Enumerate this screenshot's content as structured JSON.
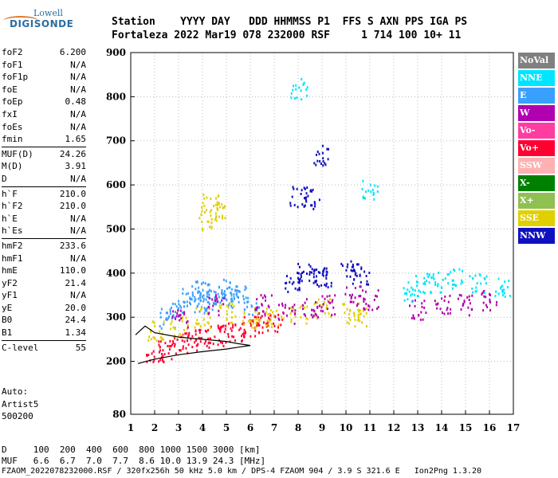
{
  "logo": {
    "line1": "Lowell",
    "line2": "DIGISONDE"
  },
  "header": {
    "labels": "Station    YYYY DAY   DDD HHMMSS P1  FFS S AXN PPS IGA PS",
    "values": "Fortaleza 2022 Mar19 078 232000 RSF     1 714 100 10+ 11"
  },
  "params": [
    {
      "key": "foF2",
      "value": "6.200"
    },
    {
      "key": "foF1",
      "value": "N/A"
    },
    {
      "key": "foF1p",
      "value": "N/A"
    },
    {
      "key": "foE",
      "value": "N/A"
    },
    {
      "key": "foEp",
      "value": "0.48"
    },
    {
      "key": "fxI",
      "value": "N/A"
    },
    {
      "key": "foEs",
      "value": "N/A"
    },
    {
      "key": "fmin",
      "value": "1.65"
    },
    {
      "key": "MUF(D)",
      "value": "24.26"
    },
    {
      "key": "M(D)",
      "value": "3.91"
    },
    {
      "key": "D",
      "value": "N/A"
    },
    {
      "key": "h`F",
      "value": "210.0"
    },
    {
      "key": "h`F2",
      "value": "210.0"
    },
    {
      "key": "h`E",
      "value": "N/A"
    },
    {
      "key": "h`Es",
      "value": "N/A"
    },
    {
      "key": "hmF2",
      "value": "233.6"
    },
    {
      "key": "hmF1",
      "value": "N/A"
    },
    {
      "key": "hmE",
      "value": "110.0"
    },
    {
      "key": "yF2",
      "value": "21.4"
    },
    {
      "key": "yF1",
      "value": "N/A"
    },
    {
      "key": "yE",
      "value": "20.0"
    },
    {
      "key": "B0",
      "value": "24.4"
    },
    {
      "key": "B1",
      "value": "1.34"
    },
    {
      "key": "C-level",
      "value": "55"
    }
  ],
  "auto": {
    "line1": "Auto:",
    "line2": "Artist5",
    "line3": "500200"
  },
  "footer": {
    "d_row": "D     100  200  400  600  800 1000 1500 3000 [km]",
    "muf_row": "MUF   6.6  6.7  7.0  7.7  8.6 10.0 13.9 24.3 [MHz]",
    "file_row": "FZAOM_2022078232000.RSF / 320fx256h 50 kHz 5.0 km / DPS-4 FZAOM 904 / 3.9 S 321.6 E   Ion2Png 1.3.20"
  },
  "legend": [
    {
      "label": "NoVal",
      "color": "#808080"
    },
    {
      "label": "NNE",
      "color": "#00e5ff"
    },
    {
      "label": "E",
      "color": "#3aa0ff"
    },
    {
      "label": "W",
      "color": "#b000b0"
    },
    {
      "label": "Vo-",
      "color": "#ff3ca0"
    },
    {
      "label": "Vo+",
      "color": "#ff0030"
    },
    {
      "label": "SSW",
      "color": "#ffb0b0"
    },
    {
      "label": "X-",
      "color": "#008000"
    },
    {
      "label": "X+",
      "color": "#90c050"
    },
    {
      "label": "SSE",
      "color": "#e0d000"
    },
    {
      "label": "NNW",
      "color": "#1010c0"
    }
  ],
  "chart_data": {
    "type": "scatter",
    "x": {
      "min": 1,
      "max": 17,
      "ticks": [
        "1",
        "2",
        "3",
        "4",
        "5",
        "6",
        "7",
        "8",
        "9",
        "10",
        "11",
        "12",
        "13",
        "14",
        "15",
        "16",
        "17"
      ]
    },
    "y": {
      "min": 80,
      "max": 900,
      "ticks": [
        "80",
        "200",
        "300",
        "400",
        "500",
        "600",
        "700",
        "800",
        "900"
      ]
    },
    "clusters": [
      {
        "name": "E",
        "points": [
          [
            2.5,
            300
          ],
          [
            3.0,
            320
          ],
          [
            3.5,
            350
          ],
          [
            4.0,
            360
          ],
          [
            4.5,
            355
          ],
          [
            5.0,
            365
          ],
          [
            5.5,
            350
          ],
          [
            6.0,
            330
          ],
          [
            4.2,
            340
          ],
          [
            3.8,
            335
          ],
          [
            5.2,
            345
          ]
        ]
      },
      {
        "name": "Vo+",
        "points": [
          [
            2.0,
            215
          ],
          [
            2.5,
            225
          ],
          [
            3.0,
            240
          ],
          [
            3.5,
            250
          ],
          [
            4.0,
            255
          ],
          [
            4.5,
            260
          ],
          [
            5.0,
            265
          ],
          [
            5.5,
            270
          ],
          [
            6.0,
            280
          ],
          [
            6.5,
            290
          ],
          [
            7.0,
            290
          ]
        ]
      },
      {
        "name": "SSE",
        "points": [
          [
            2.0,
            270
          ],
          [
            3.0,
            280
          ],
          [
            4.0,
            300
          ],
          [
            4.3,
            560
          ],
          [
            4.6,
            540
          ],
          [
            4.2,
            520
          ],
          [
            5.0,
            310
          ],
          [
            6.0,
            300
          ],
          [
            7.0,
            300
          ],
          [
            8.0,
            310
          ],
          [
            9.0,
            320
          ],
          [
            10.2,
            310
          ],
          [
            10.6,
            305
          ]
        ]
      },
      {
        "name": "W",
        "points": [
          [
            3.0,
            300
          ],
          [
            4.5,
            330
          ],
          [
            6.5,
            330
          ],
          [
            7.5,
            310
          ],
          [
            8.5,
            320
          ],
          [
            9.2,
            330
          ],
          [
            10.3,
            350
          ],
          [
            11.0,
            340
          ],
          [
            13.0,
            320
          ],
          [
            14.0,
            330
          ],
          [
            15.0,
            330
          ],
          [
            16.0,
            340
          ]
        ]
      },
      {
        "name": "NNW",
        "points": [
          [
            7.8,
            380
          ],
          [
            8.3,
            400
          ],
          [
            8.8,
            390
          ],
          [
            9.0,
            390
          ],
          [
            10.1,
            410
          ],
          [
            10.6,
            400
          ],
          [
            8.0,
            575
          ],
          [
            8.5,
            570
          ],
          [
            9.0,
            670
          ]
        ]
      },
      {
        "name": "NNE",
        "points": [
          [
            8.0,
            820
          ],
          [
            12.7,
            360
          ],
          [
            13.2,
            380
          ],
          [
            13.8,
            380
          ],
          [
            14.5,
            390
          ],
          [
            15.5,
            380
          ],
          [
            16.5,
            370
          ],
          [
            11.0,
            590
          ]
        ]
      }
    ],
    "trace_lines": [
      {
        "name": "virtual-height-trace-lower",
        "points": [
          [
            1.3,
            195
          ],
          [
            2.0,
            205
          ],
          [
            3.0,
            215
          ],
          [
            4.0,
            222
          ],
          [
            5.0,
            228
          ],
          [
            5.5,
            232
          ],
          [
            6.0,
            236
          ]
        ]
      },
      {
        "name": "virtual-height-trace-upper",
        "points": [
          [
            1.2,
            260
          ],
          [
            1.6,
            280
          ],
          [
            2.0,
            265
          ],
          [
            3.0,
            255
          ],
          [
            4.0,
            250
          ],
          [
            5.0,
            245
          ],
          [
            5.5,
            240
          ],
          [
            6.0,
            236
          ]
        ]
      }
    ]
  }
}
